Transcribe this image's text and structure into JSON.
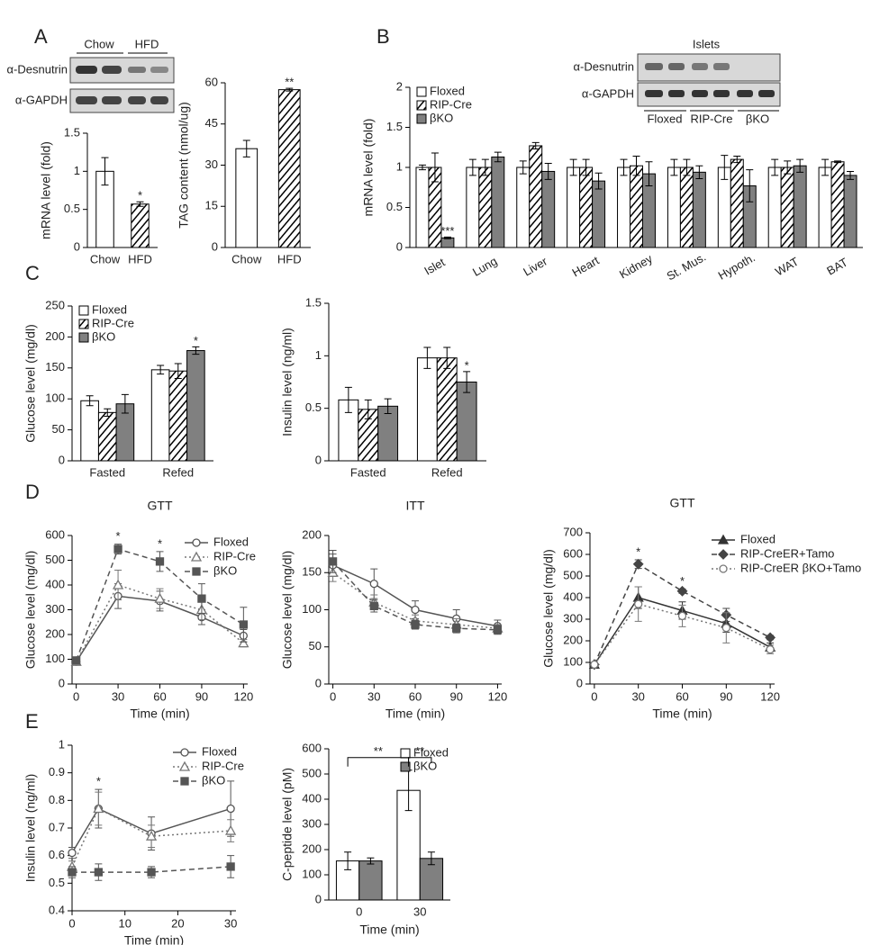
{
  "panels": [
    "A",
    "B",
    "C",
    "D",
    "E"
  ],
  "blots": [
    {
      "rows": [
        "α-Desnutrin",
        "α-GAPDH"
      ],
      "lanes": [
        "Chow",
        "HFD"
      ]
    },
    {
      "title": "Islets",
      "rows": [
        "α-Desnutrin",
        "α-GAPDH"
      ],
      "lanes": [
        "Floxed",
        "RIP-Cre",
        "βKO"
      ]
    }
  ],
  "chart_data": [
    {
      "type": "bar",
      "ylabel": "mRNA level (fold)",
      "categories": [
        "Chow",
        "HFD"
      ],
      "values": [
        1,
        0.57
      ],
      "errors": [
        0.18,
        0.03
      ],
      "colors": [
        "#ffffff",
        "#ffffff"
      ],
      "hatch": [
        false,
        true
      ],
      "ylim": [
        0,
        1.5
      ],
      "yticks": [
        0,
        0.5,
        1,
        1.5
      ],
      "annotations": [
        {
          "text": "*",
          "category": "HFD"
        }
      ]
    },
    {
      "type": "bar",
      "ylabel": "TAG content (nmol/ug)",
      "categories": [
        "Chow",
        "HFD"
      ],
      "values": [
        36,
        57.5
      ],
      "errors": [
        3,
        0.5
      ],
      "colors": [
        "#ffffff",
        "#ffffff"
      ],
      "hatch": [
        false,
        true
      ],
      "ylim": [
        0,
        60
      ],
      "yticks": [
        0,
        15,
        30,
        45,
        60
      ],
      "annotations": [
        {
          "text": "**",
          "category": "HFD"
        }
      ]
    },
    {
      "type": "bar",
      "ylabel": "mRNA level (fold)",
      "categories": [
        "Islet",
        "Lung",
        "Liver",
        "Heart",
        "Kidney",
        "St. Mus.",
        "Hypoth.",
        "WAT",
        "BAT"
      ],
      "series": [
        {
          "name": "Floxed",
          "color": "#ffffff",
          "hatch": false,
          "values": [
            1,
            1,
            1,
            1,
            1,
            1,
            1,
            1,
            1
          ],
          "errors": [
            0.03,
            0.1,
            0.08,
            0.1,
            0.1,
            0.1,
            0.15,
            0.1,
            0.1
          ]
        },
        {
          "name": "RIP-Cre",
          "color": "#ffffff",
          "hatch": true,
          "values": [
            1,
            1,
            1.27,
            1,
            1.02,
            1,
            1.1,
            1,
            1.07
          ],
          "errors": [
            0.18,
            0.1,
            0.04,
            0.1,
            0.12,
            0.1,
            0.04,
            0.08,
            0.01
          ]
        },
        {
          "name": "βKO",
          "color": "#808080",
          "hatch": false,
          "values": [
            0.12,
            1.13,
            0.95,
            0.83,
            0.92,
            0.94,
            0.77,
            1.02,
            0.9
          ],
          "errors": [
            0.01,
            0.06,
            0.1,
            0.1,
            0.15,
            0.08,
            0.2,
            0.08,
            0.05
          ]
        }
      ],
      "ylim": [
        0,
        2
      ],
      "yticks": [
        0,
        0.5,
        1,
        1.5,
        2
      ],
      "legend": "upper left",
      "annotations": [
        {
          "text": "***",
          "category": "Islet",
          "series": "βKO"
        }
      ]
    },
    {
      "type": "bar",
      "ylabel": "Glucose level (mg/dl)",
      "categories": [
        "Fasted",
        "Refed"
      ],
      "series": [
        {
          "name": "Floxed",
          "color": "#ffffff",
          "hatch": false,
          "values": [
            97,
            147
          ],
          "errors": [
            8,
            7
          ]
        },
        {
          "name": "RIP-Cre",
          "color": "#ffffff",
          "hatch": true,
          "values": [
            78,
            145
          ],
          "errors": [
            6,
            12
          ]
        },
        {
          "name": "βKO",
          "color": "#808080",
          "hatch": false,
          "values": [
            92,
            178
          ],
          "errors": [
            15,
            6
          ]
        }
      ],
      "ylim": [
        0,
        250
      ],
      "yticks": [
        0,
        50,
        100,
        150,
        200,
        250
      ],
      "legend": "upper left",
      "annotations": [
        {
          "text": "*",
          "category": "Refed",
          "series": "βKO"
        }
      ]
    },
    {
      "type": "bar",
      "ylabel": "Insulin level (ng/ml)",
      "categories": [
        "Fasted",
        "Refed"
      ],
      "series": [
        {
          "name": "Floxed",
          "color": "#ffffff",
          "hatch": false,
          "values": [
            0.58,
            0.98
          ],
          "errors": [
            0.12,
            0.1
          ]
        },
        {
          "name": "RIP-Cre",
          "color": "#ffffff",
          "hatch": true,
          "values": [
            0.49,
            0.98
          ],
          "errors": [
            0.09,
            0.1
          ]
        },
        {
          "name": "βKO",
          "color": "#808080",
          "hatch": false,
          "values": [
            0.52,
            0.75
          ],
          "errors": [
            0.07,
            0.1
          ]
        }
      ],
      "ylim": [
        0,
        1.5
      ],
      "yticks": [
        0,
        0.5,
        1,
        1.5
      ],
      "annotations": [
        {
          "text": "*",
          "category": "Refed",
          "series": "βKO"
        }
      ]
    },
    {
      "type": "line",
      "title": "GTT",
      "xlabel": "Time (min)",
      "ylabel": "Glucose level (mg/dl)",
      "x": [
        0,
        30,
        60,
        90,
        120
      ],
      "series": [
        {
          "name": "Floxed",
          "color": "#555555",
          "marker": "circle",
          "filled": false,
          "dash": "solid",
          "values": [
            90,
            355,
            335,
            270,
            195
          ],
          "errors": [
            10,
            50,
            40,
            30,
            25
          ]
        },
        {
          "name": "RIP-Cre",
          "color": "#777777",
          "marker": "triangle",
          "filled": false,
          "dash": "dotted",
          "values": [
            90,
            400,
            345,
            300,
            165
          ],
          "errors": [
            10,
            60,
            40,
            40,
            15
          ]
        },
        {
          "name": "βKO",
          "color": "#555555",
          "marker": "square",
          "filled": true,
          "dash": "dashed",
          "values": [
            95,
            545,
            495,
            345,
            240
          ],
          "errors": [
            10,
            20,
            40,
            60,
            70
          ]
        }
      ],
      "xlim": [
        -3,
        123
      ],
      "xticks": [
        0,
        30,
        60,
        90,
        120
      ],
      "ylim": [
        0,
        600
      ],
      "yticks": [
        0,
        100,
        200,
        300,
        400,
        500,
        600
      ],
      "legend": "upper right",
      "annotations": [
        {
          "text": "*",
          "x": 30
        },
        {
          "text": "*",
          "x": 60
        }
      ]
    },
    {
      "type": "line",
      "title": "ITT",
      "xlabel": "Time (min)",
      "ylabel": "Glucose level (mg/dl)",
      "x": [
        0,
        30,
        60,
        90,
        120
      ],
      "series": [
        {
          "name": "Floxed",
          "color": "#555555",
          "marker": "circle",
          "filled": false,
          "dash": "solid",
          "values": [
            160,
            135,
            100,
            88,
            78
          ],
          "errors": [
            15,
            20,
            12,
            12,
            8
          ]
        },
        {
          "name": "RIP-Cre",
          "color": "#777777",
          "marker": "triangle",
          "filled": false,
          "dash": "dotted",
          "values": [
            150,
            110,
            85,
            80,
            75
          ],
          "errors": [
            12,
            10,
            8,
            8,
            5
          ]
        },
        {
          "name": "βKO",
          "color": "#555555",
          "marker": "square",
          "filled": true,
          "dash": "dashed",
          "values": [
            165,
            105,
            80,
            75,
            73
          ],
          "errors": [
            15,
            8,
            6,
            6,
            6
          ]
        }
      ],
      "xlim": [
        -3,
        123
      ],
      "xticks": [
        0,
        30,
        60,
        90,
        120
      ],
      "ylim": [
        0,
        200
      ],
      "yticks": [
        0,
        50,
        100,
        150,
        200
      ]
    },
    {
      "type": "line",
      "title": "GTT",
      "xlabel": "Time (min)",
      "ylabel": "Glucose level (mg/dl)",
      "x": [
        0,
        30,
        60,
        90,
        120
      ],
      "series": [
        {
          "name": "Floxed",
          "color": "#333333",
          "marker": "triangle",
          "filled": true,
          "dash": "solid",
          "values": [
            90,
            400,
            340,
            280,
            170
          ],
          "errors": [
            10,
            50,
            40,
            40,
            20
          ]
        },
        {
          "name": "RIP-CreER+Tamo",
          "color": "#444444",
          "marker": "diamond",
          "filled": true,
          "dash": "dashed",
          "values": [
            90,
            555,
            430,
            320,
            215
          ],
          "errors": [
            10,
            20,
            10,
            30,
            10
          ]
        },
        {
          "name": "RIP-CreER βKO+Tamo",
          "color": "#777777",
          "marker": "circle",
          "filled": false,
          "dash": "dotted",
          "values": [
            90,
            370,
            315,
            260,
            160
          ],
          "errors": [
            10,
            80,
            50,
            70,
            20
          ]
        }
      ],
      "xlim": [
        -3,
        123
      ],
      "xticks": [
        0,
        30,
        60,
        90,
        120
      ],
      "ylim": [
        0,
        700
      ],
      "yticks": [
        0,
        100,
        200,
        300,
        400,
        500,
        600,
        700
      ],
      "legend": "upper right",
      "annotations": [
        {
          "text": "*",
          "x": 30
        },
        {
          "text": "*",
          "x": 60
        }
      ]
    },
    {
      "type": "line",
      "xlabel": "Time (min)",
      "ylabel": "Insulin level (ng/ml)",
      "x": [
        0,
        5,
        15,
        30
      ],
      "series": [
        {
          "name": "Floxed",
          "color": "#555555",
          "marker": "circle",
          "filled": false,
          "dash": "solid",
          "values": [
            0.61,
            0.77,
            0.68,
            0.77
          ],
          "errors": [
            0.02,
            0.07,
            0.06,
            0.1
          ]
        },
        {
          "name": "RIP-Cre",
          "color": "#777777",
          "marker": "triangle",
          "filled": false,
          "dash": "dotted",
          "values": [
            0.56,
            0.77,
            0.67,
            0.69
          ],
          "errors": [
            0.02,
            0.06,
            0.04,
            0.04
          ]
        },
        {
          "name": "βKO",
          "color": "#555555",
          "marker": "square",
          "filled": true,
          "dash": "dashed",
          "values": [
            0.54,
            0.54,
            0.54,
            0.56
          ],
          "errors": [
            0.02,
            0.03,
            0.02,
            0.04
          ]
        }
      ],
      "xlim": [
        0,
        31
      ],
      "xticks": [
        0,
        10,
        20,
        30
      ],
      "ylim": [
        0.4,
        1
      ],
      "yticks": [
        0.4,
        0.5,
        0.6,
        0.7,
        0.8,
        0.9,
        1
      ],
      "legend": "upper right",
      "annotations": [
        {
          "text": "*",
          "x": 5
        }
      ]
    },
    {
      "type": "bar",
      "xlabel": "Time (min)",
      "ylabel": "C-peptide level (pM)",
      "categories": [
        "0",
        "30"
      ],
      "series": [
        {
          "name": "Floxed",
          "color": "#ffffff",
          "hatch": false,
          "values": [
            155,
            435
          ],
          "errors": [
            35,
            80
          ]
        },
        {
          "name": "βKO",
          "color": "#808080",
          "hatch": false,
          "values": [
            155,
            165
          ],
          "errors": [
            12,
            25
          ]
        }
      ],
      "ylim": [
        0,
        600
      ],
      "yticks": [
        0,
        100,
        200,
        300,
        400,
        500,
        600
      ],
      "legend": "upper right",
      "annotations": [
        {
          "text": "**",
          "from": {
            "category": "0",
            "series": "Floxed"
          },
          "to": {
            "category": "30",
            "series": "Floxed"
          }
        },
        {
          "text": "**",
          "from": {
            "category": "30",
            "series": "Floxed"
          },
          "to": {
            "category": "30",
            "series": "βKO"
          }
        }
      ]
    }
  ]
}
